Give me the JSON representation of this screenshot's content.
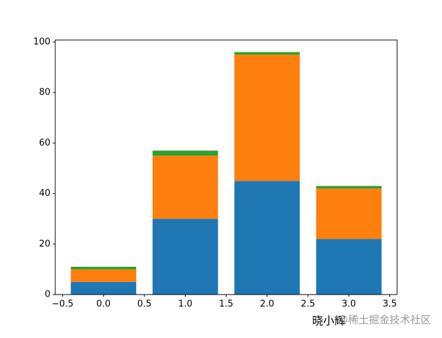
{
  "chart_data": {
    "type": "stacked_bar",
    "x": [
      0,
      1,
      2,
      3
    ],
    "bar_width": 0.8,
    "series": [
      {
        "color": "#1f77b4",
        "values": [
          5,
          30,
          45,
          22
        ]
      },
      {
        "color": "#ff7f0e",
        "values": [
          5,
          25,
          50,
          20
        ]
      },
      {
        "color": "#2ca02c",
        "values": [
          1,
          2,
          1,
          1
        ]
      }
    ],
    "xlim": [
      -0.59,
      3.59
    ],
    "ylim": [
      0,
      100.8
    ],
    "xticks": [
      {
        "value": -0.5,
        "label": "−0.5"
      },
      {
        "value": 0,
        "label": "0.0"
      },
      0.5,
      {
        "value": 1,
        "label": "1.0"
      },
      1.5,
      {
        "value": 2,
        "label": "2.0"
      },
      2.5,
      {
        "value": 3,
        "label": "3.0"
      },
      3.5
    ],
    "yticks": [
      0,
      20,
      40,
      60,
      80,
      100
    ],
    "annotations": [
      "晓小辉",
      "@稀土掘金技术社区"
    ]
  }
}
